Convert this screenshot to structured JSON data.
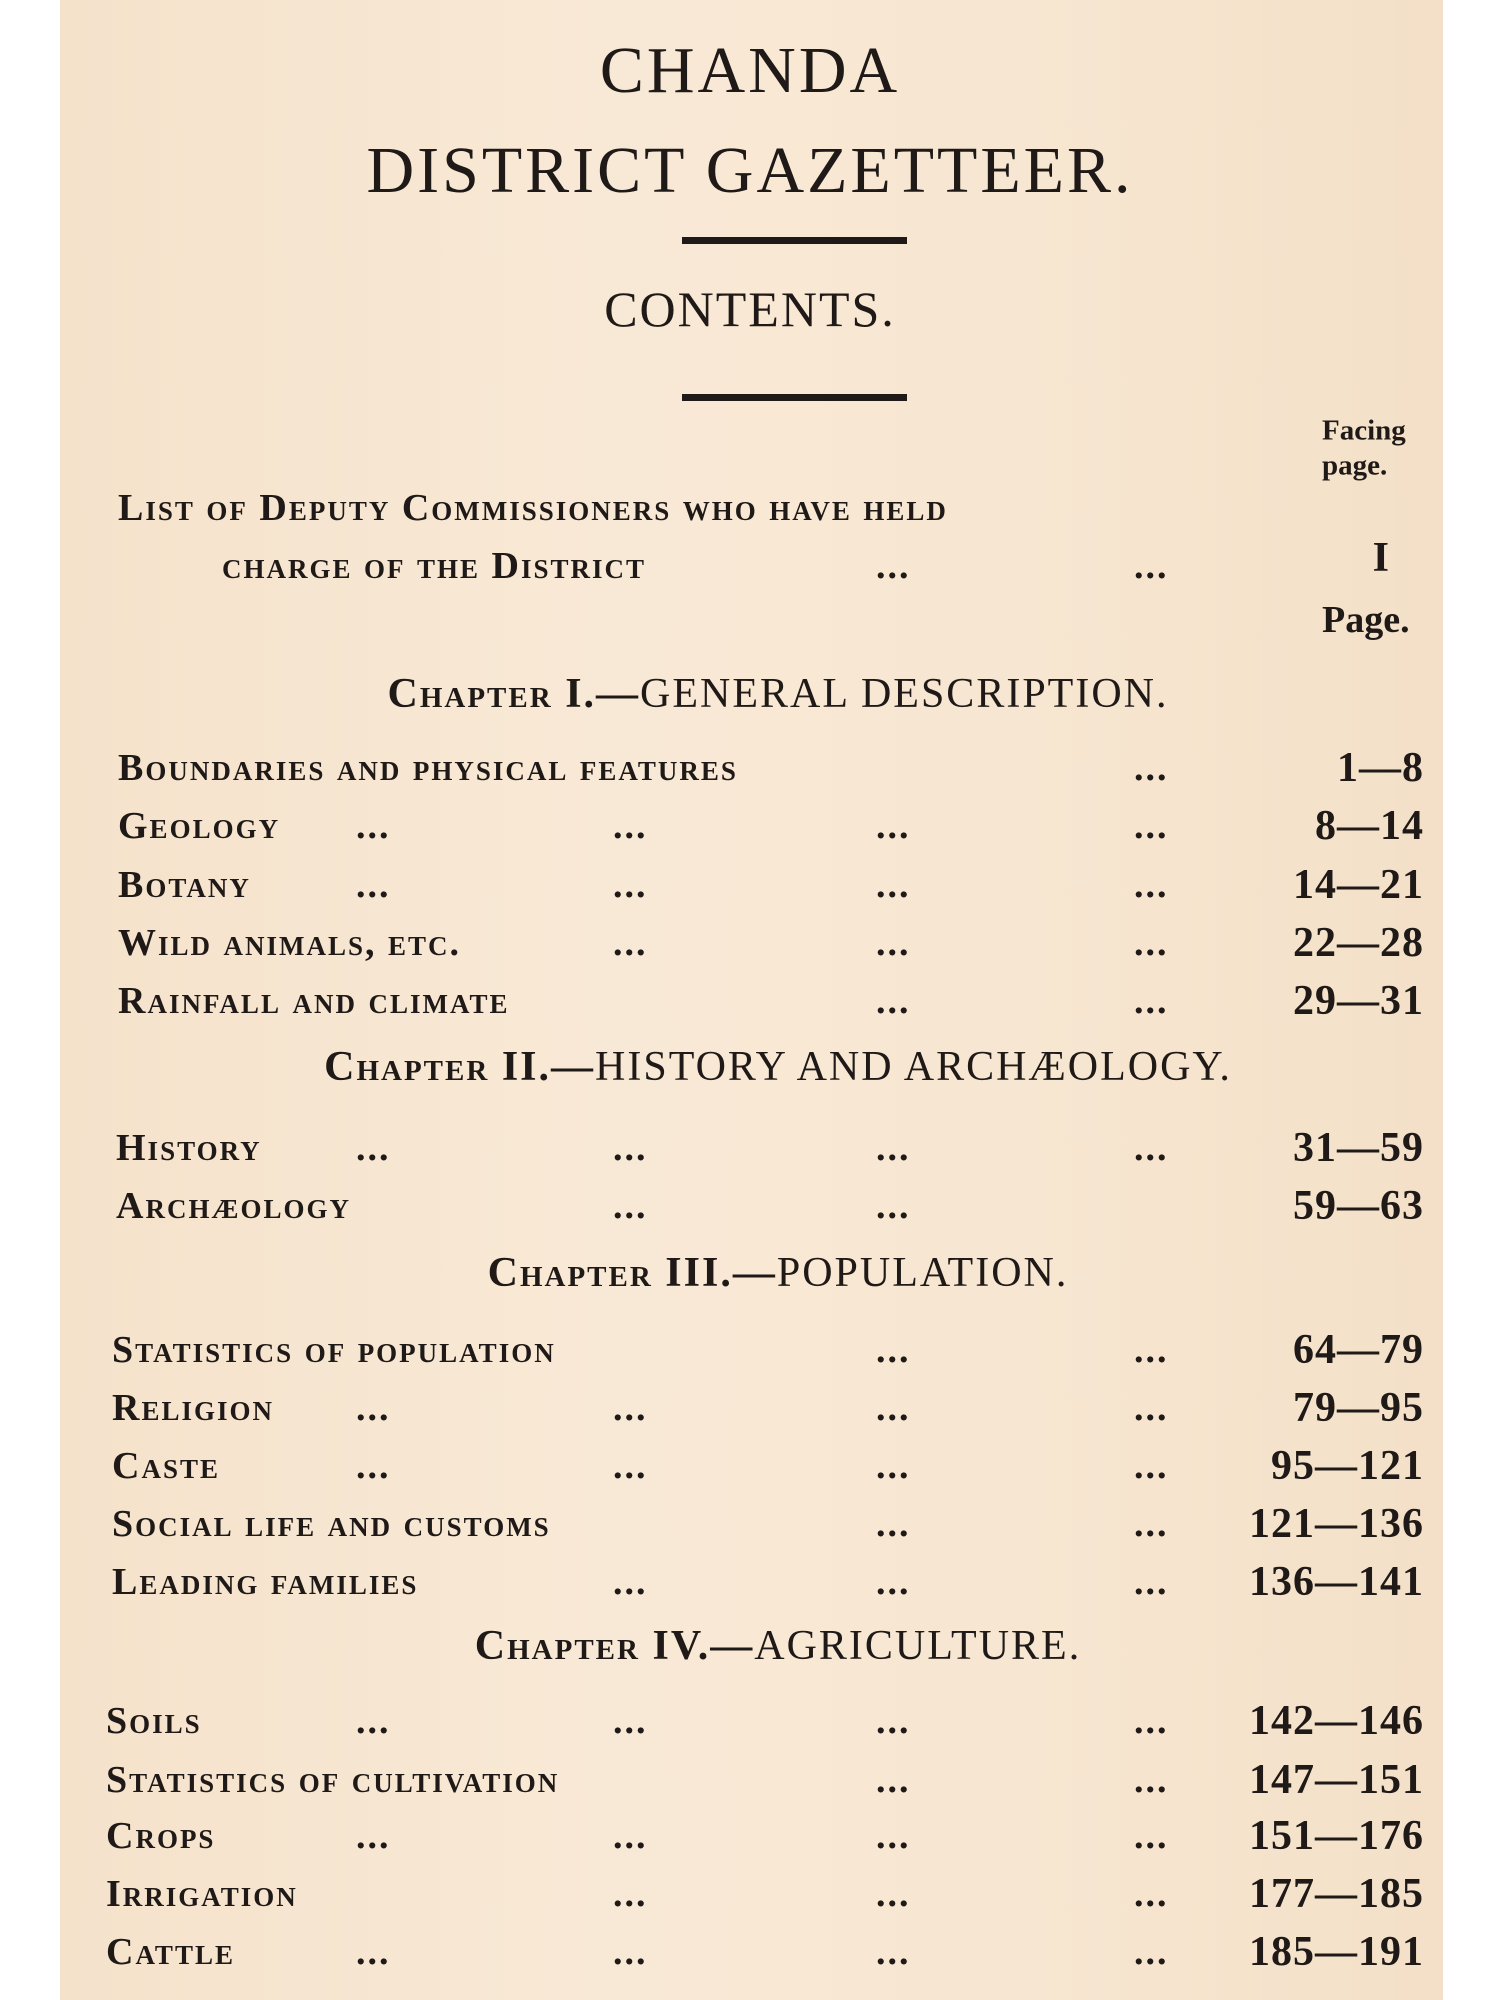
{
  "header": {
    "title_line1": "CHANDA",
    "title_line2": "DISTRICT GAZETTEER.",
    "contents": "CONTENTS."
  },
  "column_headers": {
    "facing_1": "Facing",
    "facing_2": "page.",
    "page": "Page."
  },
  "leader": "...",
  "front_matter": {
    "line1": "List of Deputy Commissioners who have held",
    "line2": "charge of the District",
    "page": "I"
  },
  "chapters": [
    {
      "prefix": "Chapter I.—",
      "title": "GENERAL DESCRIPTION.",
      "entries": [
        {
          "label": "Boundaries and physical features",
          "pages": "1—8",
          "leaders": [
            false,
            false,
            false,
            true
          ]
        },
        {
          "label": "Geology",
          "pages": "8—14",
          "leaders": [
            true,
            true,
            true,
            true
          ]
        },
        {
          "label": "Botany",
          "pages": "14—21",
          "leaders": [
            true,
            true,
            true,
            true
          ]
        },
        {
          "label": "Wild animals, etc.",
          "pages": "22—28",
          "leaders": [
            false,
            true,
            true,
            true
          ]
        },
        {
          "label": "Rainfall and climate",
          "pages": "29—31",
          "leaders": [
            false,
            false,
            true,
            true
          ]
        }
      ]
    },
    {
      "prefix": "Chapter II.—",
      "title": "HISTORY AND ARCHÆOLOGY.",
      "entries": [
        {
          "label": "History",
          "pages": "31—59",
          "leaders": [
            true,
            true,
            true,
            true
          ]
        },
        {
          "label": "Archæology",
          "pages": "59—63",
          "leaders": [
            false,
            true,
            true,
            false
          ]
        }
      ]
    },
    {
      "prefix": "Chapter III.—",
      "title": "POPULATION.",
      "entries": [
        {
          "label": "Statistics of population",
          "pages": "64—79",
          "leaders": [
            false,
            false,
            true,
            true
          ]
        },
        {
          "label": "Religion",
          "pages": "79—95",
          "leaders": [
            true,
            true,
            true,
            true
          ]
        },
        {
          "label": "Caste",
          "pages": "95—121",
          "leaders": [
            true,
            true,
            true,
            true
          ]
        },
        {
          "label": "Social life and customs",
          "pages": "121—136",
          "leaders": [
            false,
            false,
            true,
            true
          ]
        },
        {
          "label": "Leading families",
          "pages": "136—141",
          "leaders": [
            false,
            true,
            true,
            true
          ]
        }
      ]
    },
    {
      "prefix": "Chapter IV.—",
      "title": "AGRICULTURE.",
      "entries": [
        {
          "label": "Soils",
          "pages": "142—146",
          "leaders": [
            true,
            true,
            true,
            true
          ]
        },
        {
          "label": "Statistics of cultivation",
          "pages": "147—151",
          "leaders": [
            false,
            false,
            true,
            true
          ]
        },
        {
          "label": "Crops",
          "pages": "151—176",
          "leaders": [
            true,
            true,
            true,
            true
          ]
        },
        {
          "label": "Irrigation",
          "pages": "177—185",
          "leaders": [
            false,
            true,
            true,
            true
          ]
        },
        {
          "label": "Cattle",
          "pages": "185—191",
          "leaders": [
            true,
            true,
            true,
            true
          ]
        }
      ]
    }
  ]
}
